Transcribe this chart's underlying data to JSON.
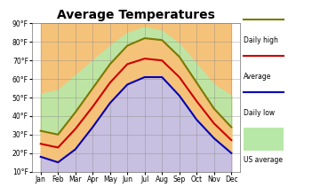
{
  "title": "Average Temperatures",
  "months": [
    "Jan",
    "Feb",
    "Mar",
    "Apr",
    "May",
    "Jun",
    "Jul",
    "Aug",
    "Sep",
    "Oct",
    "Nov",
    "Dec"
  ],
  "daily_high": [
    32,
    30,
    42,
    55,
    68,
    78,
    82,
    81,
    72,
    58,
    44,
    34
  ],
  "average": [
    25,
    23,
    33,
    45,
    58,
    68,
    71,
    70,
    61,
    48,
    36,
    27
  ],
  "daily_low": [
    18,
    15,
    22,
    34,
    47,
    57,
    61,
    61,
    51,
    38,
    28,
    20
  ],
  "us_high": [
    52,
    54,
    62,
    70,
    78,
    85,
    88,
    86,
    79,
    68,
    57,
    51
  ],
  "us_low": [
    26,
    28,
    36,
    44,
    54,
    62,
    66,
    64,
    56,
    44,
    35,
    28
  ],
  "ylim": [
    10,
    90
  ],
  "yticks": [
    10,
    20,
    30,
    40,
    50,
    60,
    70,
    80,
    90
  ],
  "ytick_labels": [
    "10°F",
    "20°F",
    "30°F",
    "40°F",
    "50°F",
    "60°F",
    "70°F",
    "80°F",
    "90°F"
  ],
  "bg_orange": "#f5c27a",
  "bg_purple": "#c8c0e0",
  "color_high": "#7a7a00",
  "color_avg": "#cc0000",
  "color_low": "#0000bb",
  "color_us_fill": "#b8e8a8",
  "legend_high": "Daily high",
  "legend_avg": "Average",
  "legend_low": "Daily low",
  "legend_us": "US average"
}
